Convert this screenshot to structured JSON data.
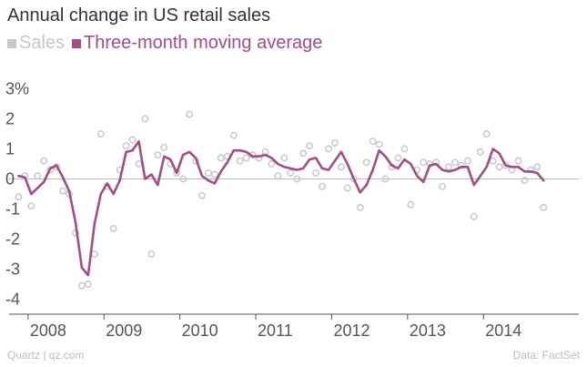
{
  "colors": {
    "sales": "#c8c8c8",
    "moving_average": "#a24d86",
    "axis": "#bdbdbd",
    "text": "#333333",
    "footer": "#bdbdbd"
  },
  "chart_data": {
    "type": "line",
    "title": "Annual change in US retail sales",
    "legend": [
      "Sales",
      "Three-month moving average"
    ],
    "xlabel": "",
    "ylabel": "",
    "y_tick_labels": [
      "3%",
      "2",
      "1",
      "0",
      "-1",
      "-2",
      "-3",
      "-4"
    ],
    "y_ticks": [
      3,
      2,
      1,
      0,
      -1,
      -2,
      -3,
      -4
    ],
    "ylim": [
      -4.2,
      3.3
    ],
    "x_tick_labels": [
      "2008",
      "2009",
      "2010",
      "2011",
      "2012",
      "2013",
      "2014"
    ],
    "x_ticks": [
      2008,
      2009,
      2010,
      2011,
      2012,
      2013,
      2014
    ],
    "xlim": [
      2007.75,
      2015.0
    ],
    "x_start": 2007.875,
    "x_step": 0.083333,
    "series": [
      {
        "name": "Sales",
        "style": "scatter",
        "values": [
          -0.6,
          0.1,
          -0.9,
          0.1,
          0.6,
          0.3,
          0.4,
          -0.4,
          -0.5,
          -1.8,
          -3.55,
          -3.5,
          -2.5,
          1.5,
          -0.25,
          -1.65,
          0.3,
          1.1,
          1.3,
          0.5,
          2.0,
          -2.5,
          0.8,
          1.05,
          0.5,
          0.2,
          0.0,
          2.15,
          0.6,
          -0.55,
          0.2,
          0.15,
          0.7,
          0.75,
          1.45,
          0.6,
          0.7,
          0.8,
          0.7,
          0.9,
          0.5,
          0.1,
          0.7,
          0.2,
          0.0,
          0.85,
          1.1,
          0.2,
          -0.25,
          1.0,
          1.2,
          0.4,
          -0.3,
          0.0,
          -0.95,
          0.55,
          1.25,
          1.15,
          0.0,
          0.4,
          0.7,
          1.0,
          -0.85,
          0.3,
          0.55,
          0.5,
          0.55,
          -0.25,
          0.4,
          0.55,
          0.45,
          0.6,
          -1.25,
          0.9,
          1.5,
          0.6,
          0.4,
          0.45,
          0.3,
          0.6,
          -0.05,
          0.3,
          0.4,
          -0.95
        ]
      },
      {
        "name": "Three-month moving average",
        "style": "line",
        "values": [
          0.1,
          0.05,
          -0.5,
          -0.3,
          -0.1,
          0.35,
          0.45,
          0.05,
          -0.4,
          -1.45,
          -2.95,
          -3.2,
          -1.5,
          -0.5,
          -0.15,
          -0.5,
          -0.05,
          0.9,
          0.95,
          1.25,
          0.0,
          0.15,
          -0.2,
          0.75,
          0.65,
          0.2,
          0.8,
          0.9,
          0.7,
          0.1,
          -0.05,
          -0.15,
          0.25,
          0.55,
          0.95,
          0.95,
          0.9,
          0.75,
          0.75,
          0.8,
          0.7,
          0.5,
          0.4,
          0.35,
          0.3,
          0.35,
          0.65,
          0.7,
          0.35,
          0.3,
          0.6,
          0.9,
          0.5,
          0.0,
          -0.45,
          -0.2,
          0.3,
          0.95,
          0.75,
          0.45,
          0.35,
          0.65,
          0.5,
          0.1,
          -0.1,
          0.45,
          0.5,
          0.3,
          0.25,
          0.3,
          0.4,
          0.4,
          -0.2,
          0.1,
          0.4,
          1.0,
          0.85,
          0.45,
          0.4,
          0.4,
          0.25,
          0.25,
          0.2,
          -0.05
        ]
      }
    ]
  },
  "footer": {
    "source_left": "Quartz | qz.com",
    "source_right": "Data: FactSet"
  }
}
